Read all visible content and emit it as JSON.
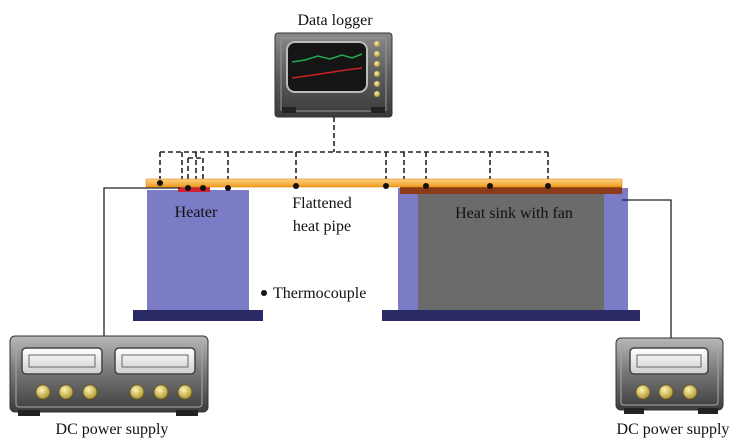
{
  "labels": {
    "data_logger": "Data logger",
    "heater": "Heater",
    "flattened_heat_pipe_line1": "Flattened",
    "flattened_heat_pipe_line2": "heat pipe",
    "heat_sink": "Heat sink with fan",
    "thermocouple": "Thermocouple",
    "dc_power_supply_left": "DC power supply",
    "dc_power_supply_right": "DC power supply"
  },
  "colors": {
    "block_fill": "#7b7bc6",
    "block_base": "#2a2a66",
    "heat_pipe": "#f5a623",
    "heat_pipe_highlight": "#ffd38a",
    "heater_pad": "#cc2233",
    "heat_sink_fill": "#6b6b6b",
    "heat_sink_top": "#8b3a1a",
    "logger_trace_green": "#22aa55",
    "logger_trace_red": "#cc2222"
  }
}
